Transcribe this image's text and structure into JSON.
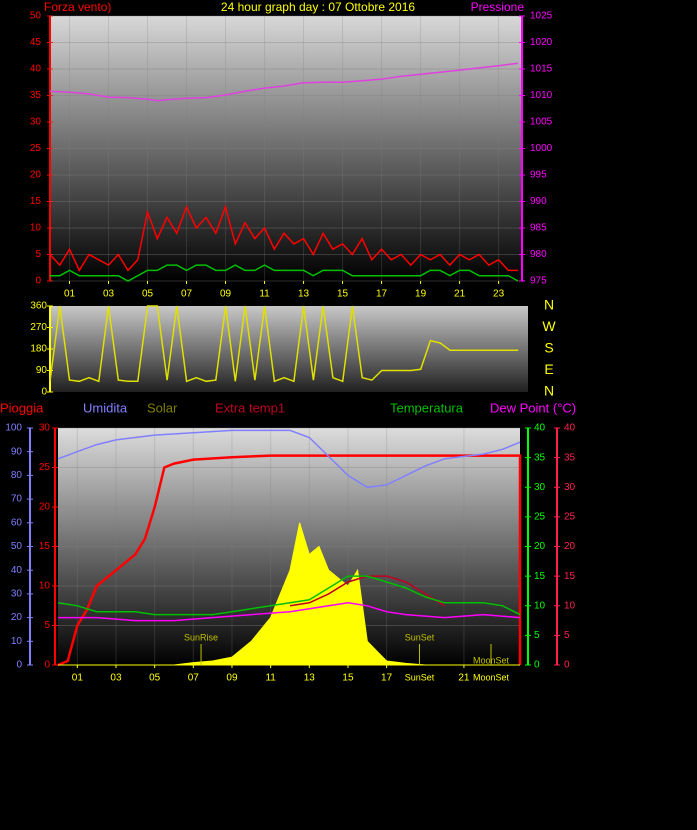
{
  "chart_data": [
    {
      "type": "line",
      "title": "24 hour graph day : 07 Ottobre 2016",
      "ylabel": "Forza vento)",
      "y2label": "Pressione",
      "xlim": [
        0,
        24.2
      ],
      "xticks": [
        {
          "value": 1,
          "label": "01"
        },
        {
          "value": 3,
          "label": "03"
        },
        {
          "value": 5,
          "label": "05"
        },
        {
          "value": 7,
          "label": "07"
        },
        {
          "value": 9,
          "label": "09"
        },
        {
          "value": 11,
          "label": "11"
        },
        {
          "value": 13,
          "label": "13"
        },
        {
          "value": 15,
          "label": "15"
        },
        {
          "value": 17,
          "label": "17"
        },
        {
          "value": 19,
          "label": "19"
        },
        {
          "value": 21,
          "label": "21"
        },
        {
          "value": 23,
          "label": "23"
        }
      ],
      "ylim": [
        0,
        50
      ],
      "yticks": [
        0,
        5,
        10,
        15,
        20,
        25,
        30,
        35,
        40,
        45,
        50
      ],
      "y2lim": [
        975,
        1025
      ],
      "y2ticks": [
        975,
        980,
        985,
        990,
        995,
        1000,
        1005,
        1010,
        1015,
        1020,
        1025
      ],
      "grid": true,
      "series": [
        {
          "color": "#ff0000",
          "axis": "y",
          "x": [
            0,
            0.5,
            1,
            1.5,
            2,
            2.5,
            3,
            3.5,
            4,
            4.5,
            5,
            5.5,
            6,
            6.5,
            7,
            7.5,
            8,
            8.5,
            9,
            9.5,
            10,
            10.5,
            11,
            11.5,
            12,
            12.5,
            13,
            13.5,
            14,
            14.5,
            15,
            15.5,
            16,
            16.5,
            17,
            17.5,
            18,
            18.5,
            19,
            19.5,
            20,
            20.5,
            21,
            21.5,
            22,
            22.5,
            23,
            23.5,
            24
          ],
          "values": [
            5,
            3,
            6,
            2,
            5,
            4,
            3,
            5,
            2,
            4,
            13,
            8,
            12,
            9,
            14,
            10,
            12,
            9,
            14,
            7,
            11,
            8,
            10,
            6,
            9,
            7,
            8,
            5,
            9,
            6,
            7,
            5,
            8,
            4,
            6,
            4,
            5,
            3,
            5,
            4,
            5,
            3,
            5,
            4,
            5,
            3,
            4,
            2,
            2
          ]
        },
        {
          "color": "#00c000",
          "axis": "y",
          "x": [
            0,
            0.5,
            1,
            1.5,
            2,
            2.5,
            3,
            3.5,
            4,
            4.5,
            5,
            5.5,
            6,
            6.5,
            7,
            7.5,
            8,
            8.5,
            9,
            9.5,
            10,
            10.5,
            11,
            11.5,
            12,
            12.5,
            13,
            13.5,
            14,
            14.5,
            15,
            15.5,
            16,
            16.5,
            17,
            17.5,
            18,
            18.5,
            19,
            19.5,
            20,
            20.5,
            21,
            21.5,
            22,
            22.5,
            23,
            23.5,
            24
          ],
          "values": [
            1,
            1,
            2,
            1,
            1,
            1,
            1,
            1,
            0,
            1,
            2,
            2,
            3,
            3,
            2,
            3,
            3,
            2,
            2,
            3,
            2,
            2,
            3,
            2,
            2,
            2,
            2,
            1,
            2,
            2,
            2,
            1,
            1,
            1,
            1,
            1,
            1,
            1,
            1,
            2,
            2,
            1,
            2,
            2,
            1,
            1,
            1,
            1,
            0
          ]
        },
        {
          "color": "#e040e0",
          "axis": "y2",
          "x": [
            0,
            1,
            2,
            3,
            4,
            5,
            5.5,
            6,
            7,
            8,
            9,
            10,
            11,
            12,
            13,
            14,
            15,
            16,
            17,
            18,
            19,
            20,
            21,
            22,
            23,
            24
          ],
          "values": [
            1010.8,
            1010.6,
            1010.3,
            1009.7,
            1009.6,
            1009.3,
            1009,
            1009.2,
            1009.5,
            1009.6,
            1010.1,
            1010.8,
            1011.4,
            1011.8,
            1012.4,
            1012.5,
            1012.5,
            1012.8,
            1013.1,
            1013.6,
            1014,
            1014.4,
            1014.8,
            1015.2,
            1015.6,
            1016.1
          ]
        }
      ]
    },
    {
      "type": "line",
      "xlim": [
        0,
        24.5
      ],
      "ylim": [
        0,
        360
      ],
      "yticks": [
        0,
        90,
        180,
        270,
        360
      ],
      "y2lim": [
        0,
        360
      ],
      "y2ticks": [
        {
          "value": 0,
          "label": "N"
        },
        {
          "value": 90,
          "label": "E"
        },
        {
          "value": 180,
          "label": "S"
        },
        {
          "value": 270,
          "label": "W"
        },
        {
          "value": 360,
          "label": "N"
        }
      ],
      "series": [
        {
          "color": "#e0e000",
          "axis": "y",
          "x": [
            0,
            0.5,
            1,
            1.5,
            2,
            2.5,
            3,
            3.5,
            4,
            4.5,
            5,
            5.5,
            6,
            6.5,
            7,
            7.5,
            8,
            8.5,
            9,
            9.5,
            10,
            10.5,
            11,
            11.5,
            12,
            12.5,
            13,
            13.5,
            14,
            14.5,
            15,
            15.5,
            16,
            16.5,
            17,
            17.5,
            18,
            18.5,
            19,
            19.5,
            20,
            20.5,
            21,
            21.5,
            22,
            22.5,
            23,
            23.5,
            24
          ],
          "values": [
            45,
            360,
            50,
            45,
            60,
            45,
            360,
            50,
            45,
            45,
            360,
            360,
            50,
            360,
            45,
            60,
            45,
            50,
            360,
            45,
            360,
            50,
            360,
            45,
            60,
            45,
            360,
            50,
            360,
            60,
            45,
            360,
            60,
            50,
            90,
            90,
            90,
            90,
            95,
            215,
            205,
            175,
            175,
            175,
            175,
            175,
            175,
            175,
            175
          ]
        }
      ]
    },
    {
      "type": "line",
      "xlim": [
        0,
        23.9
      ],
      "xticks": [
        {
          "value": 1,
          "label": "01"
        },
        {
          "value": 3,
          "label": "03"
        },
        {
          "value": 5,
          "label": "05"
        },
        {
          "value": 7,
          "label": "07"
        },
        {
          "value": 9,
          "label": "09"
        },
        {
          "value": 11,
          "label": "11"
        },
        {
          "value": 13,
          "label": "13"
        },
        {
          "value": 15,
          "label": "15"
        },
        {
          "value": 17,
          "label": "17"
        },
        {
          "value": 21,
          "label": "21"
        }
      ],
      "ylim": [
        0,
        30
      ],
      "yticks": [
        0,
        5,
        10,
        15,
        20,
        25,
        30
      ],
      "y2lim": [
        0,
        40
      ],
      "y2ticks": [
        0,
        5,
        10,
        15,
        20,
        25,
        30,
        35,
        40
      ],
      "y3lim": [
        0,
        100
      ],
      "y3ticks": [
        0,
        10,
        20,
        30,
        40,
        50,
        60,
        70,
        80,
        90,
        100
      ],
      "y4lim": [
        0,
        40
      ],
      "y4ticks": [
        0,
        5,
        10,
        15,
        20,
        25,
        30,
        35,
        40
      ],
      "grid": true,
      "annotations": [
        {
          "text": "SunRise",
          "x": 7.4
        },
        {
          "text": "SunSet",
          "x": 18.7
        },
        {
          "text": "MoonSet",
          "x": 22.4
        }
      ],
      "axis_annotations": [
        {
          "text": "SunSet",
          "x": 18.7
        },
        {
          "text": "MoonSet",
          "x": 22.4
        }
      ],
      "series": [
        {
          "name": "Pioggia",
          "color": "#ff0000",
          "axis": "y",
          "x": [
            0,
            0.5,
            1,
            1.5,
            2,
            3,
            4,
            4.5,
            5,
            5.5,
            6,
            7,
            9,
            11,
            13,
            15,
            17,
            19,
            21,
            23,
            23.9,
            23.9
          ],
          "values": [
            0,
            0.5,
            5,
            7,
            10,
            12,
            14,
            16,
            20,
            25,
            25.5,
            26,
            26.3,
            26.5,
            26.5,
            26.5,
            26.5,
            26.5,
            26.5,
            26.5,
            26.5,
            0
          ]
        },
        {
          "name": "Umidita",
          "color": "#8080ff",
          "axis": "y3",
          "x": [
            0,
            1,
            2,
            3,
            5,
            7,
            9,
            12,
            13,
            14,
            15,
            16,
            17,
            18,
            19,
            20,
            21,
            22,
            23,
            23.9
          ],
          "values": [
            87,
            90,
            93,
            95,
            97,
            98,
            99,
            99,
            96,
            88,
            80,
            75,
            76,
            80,
            84,
            87,
            88,
            89,
            91,
            94
          ]
        },
        {
          "name": "Solar",
          "color": "#808000",
          "fill": "#ffff00",
          "axis": "y",
          "x": [
            0,
            6,
            7,
            8,
            9,
            10,
            11,
            12,
            12.5,
            13,
            13.5,
            14,
            15,
            15.5,
            16,
            17,
            18,
            19,
            23.9
          ],
          "values": [
            0,
            0,
            0.3,
            0.5,
            1,
            3,
            6,
            12,
            18,
            14,
            15,
            12,
            10,
            12,
            3,
            0.5,
            0.2,
            0,
            0
          ]
        },
        {
          "name": "Extra temp1",
          "color": "#c00020",
          "axis": "y2",
          "x": [
            12,
            13,
            14,
            15,
            16,
            17,
            18,
            19,
            20
          ],
          "values": [
            10,
            10.5,
            12,
            14,
            15,
            15,
            14,
            12,
            10
          ]
        },
        {
          "name": "Temperatura",
          "color": "#00c000",
          "axis": "y2",
          "x": [
            0,
            1,
            2,
            3,
            4,
            5,
            6,
            7,
            8,
            9,
            10,
            11,
            12,
            13,
            14,
            15,
            16,
            17,
            18,
            19,
            20,
            21,
            22,
            23,
            23.9
          ],
          "values": [
            10.5,
            10,
            9,
            9,
            9,
            8.5,
            8.5,
            8.5,
            8.5,
            9,
            9.5,
            10,
            10.5,
            11,
            13,
            15,
            15,
            14,
            13,
            11.5,
            10.5,
            10.5,
            10.5,
            10,
            8.5
          ]
        },
        {
          "name": "Dew Point (°C)",
          "color": "#ff00ff",
          "axis": "y4",
          "x": [
            0,
            2,
            4,
            6,
            8,
            10,
            12,
            13,
            14,
            15,
            16,
            17,
            18,
            20,
            22,
            23.9
          ],
          "values": [
            8,
            8,
            7.5,
            7.5,
            8,
            8.5,
            9,
            9.5,
            10,
            10.5,
            10,
            9,
            8.5,
            8,
            8.5,
            8
          ]
        }
      ]
    }
  ]
}
